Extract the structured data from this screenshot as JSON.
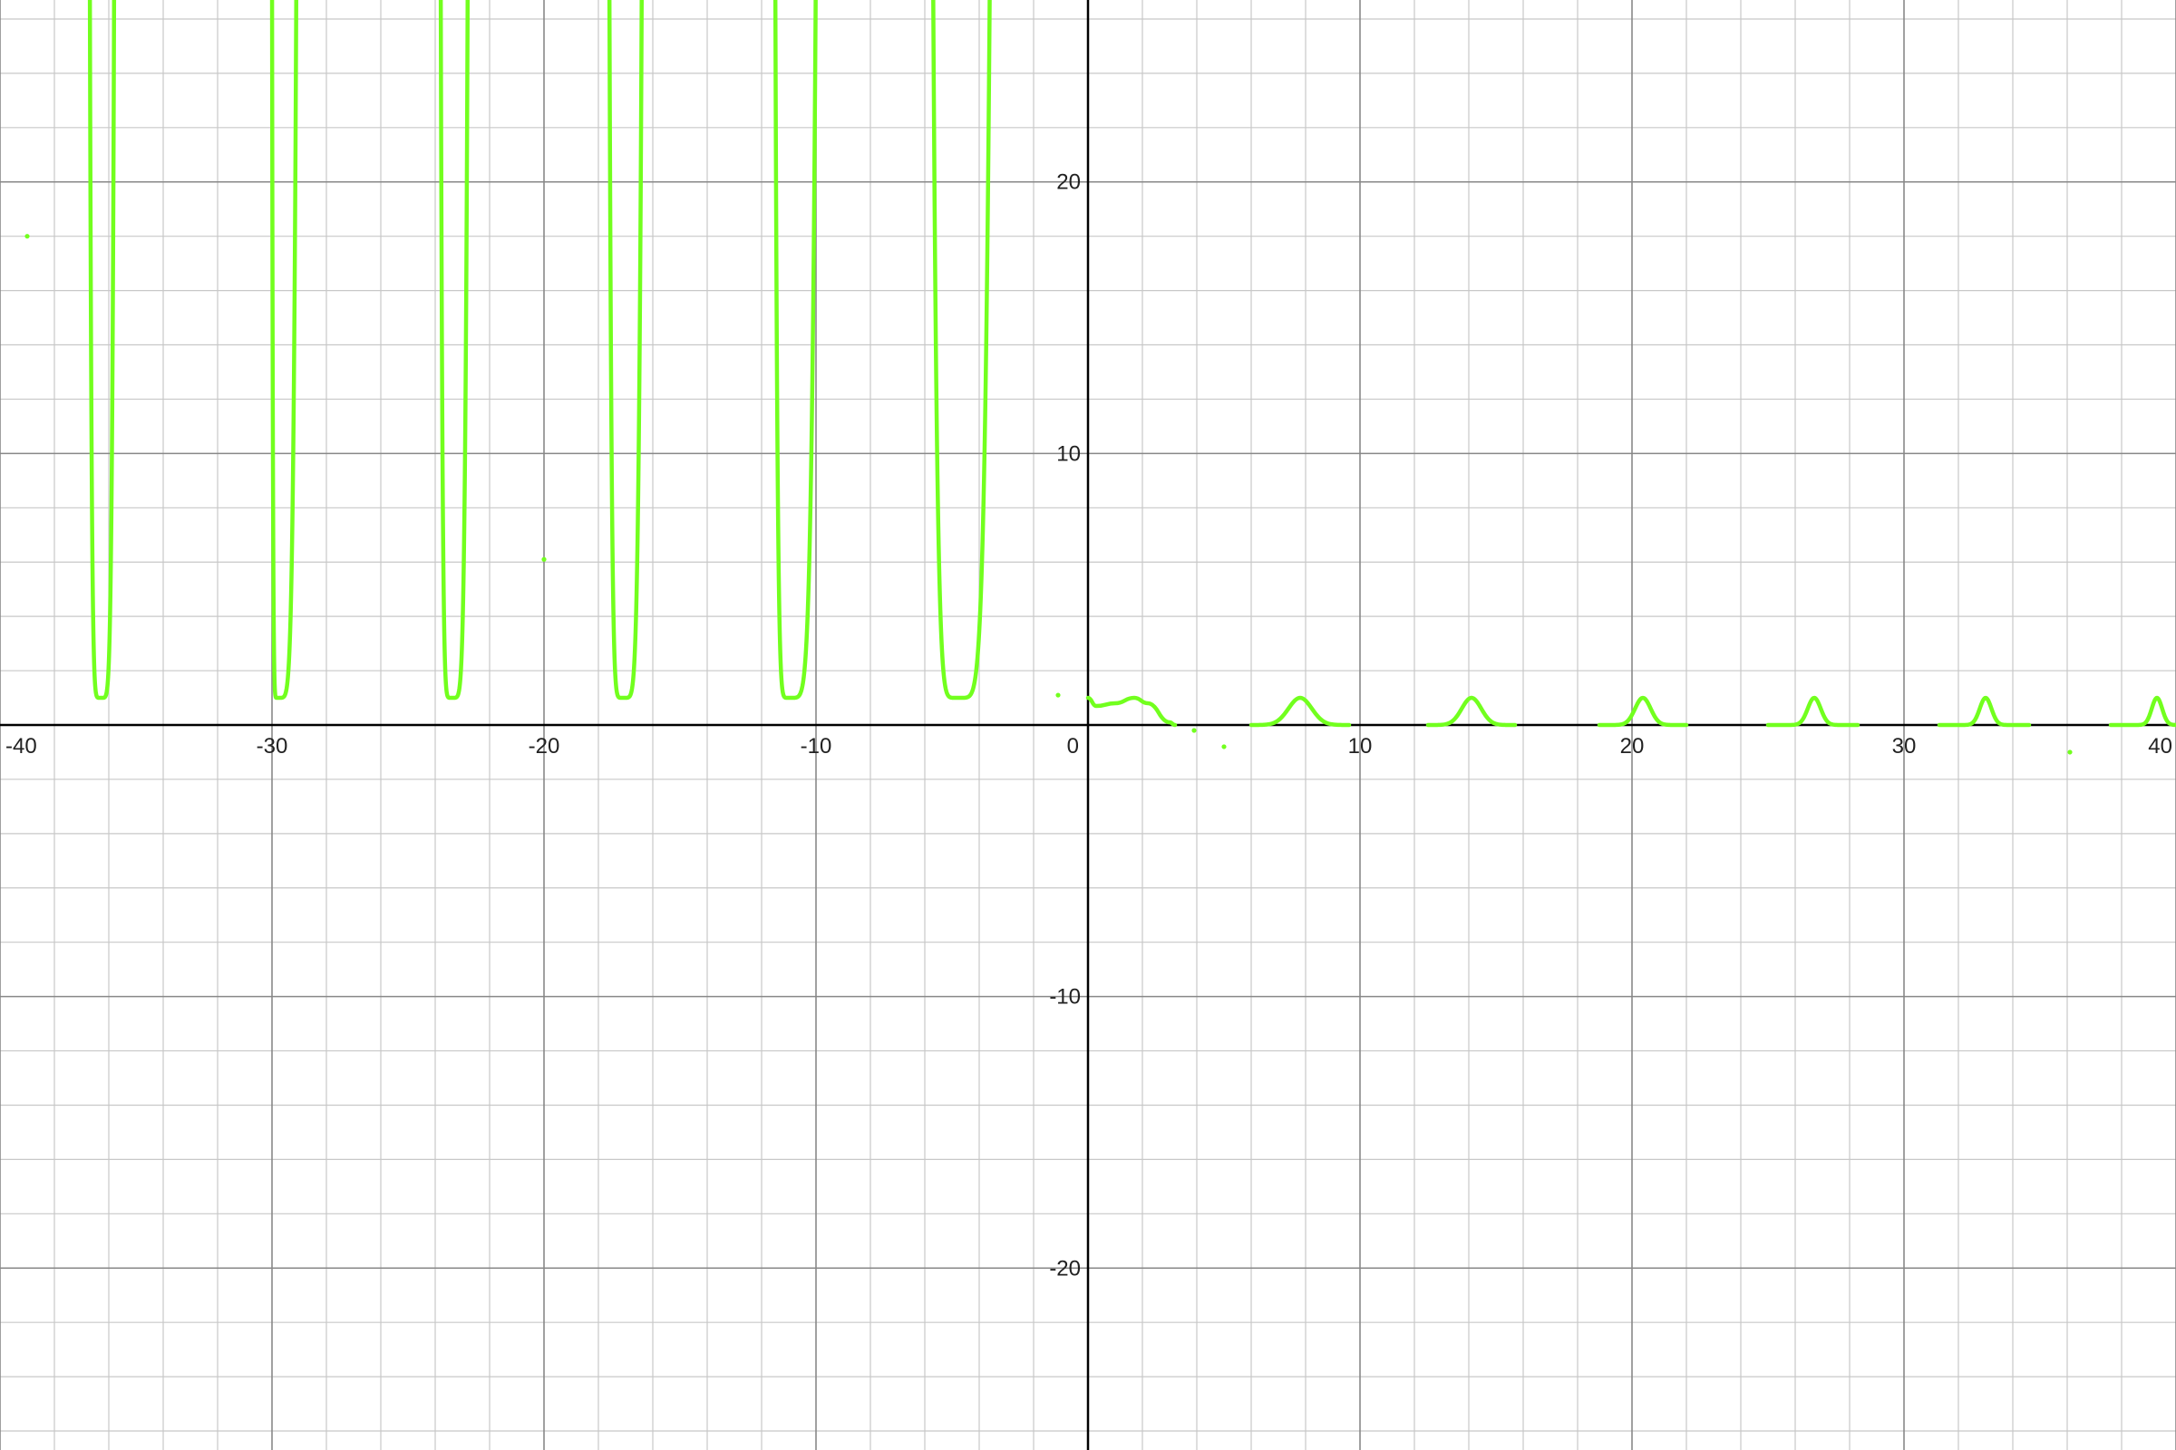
{
  "chart_data": {
    "type": "line",
    "title": "",
    "xlabel": "",
    "ylabel": "",
    "xlim": [
      -40,
      40
    ],
    "ylim": [
      -26.7,
      26.7
    ],
    "grid": true,
    "minor_grid_step": 2,
    "major_grid_step": 10,
    "x_tick_labels": [
      "-40",
      "-30",
      "-20",
      "-10",
      "0",
      "10",
      "20",
      "30",
      "40"
    ],
    "y_tick_labels": [
      "20",
      "10",
      "-10",
      "-20"
    ],
    "colors": {
      "curve": "#72ff1e",
      "axis": "#000000",
      "major_grid": "#888888",
      "minor_grid": "#c8c8c8"
    },
    "series": [
      {
        "shape": "u-wells",
        "wells": [
          {
            "left": -36.7,
            "min_x": -36.3,
            "right": -35.8,
            "min_y": 1.0
          },
          {
            "left": -30.0,
            "min_x": -29.8,
            "right": -29.1,
            "min_y": 1.0
          },
          {
            "left": -23.8,
            "min_x": -23.4,
            "right": -22.8,
            "min_y": 1.0
          },
          {
            "left": -17.6,
            "min_x": -17.1,
            "right": -16.4,
            "min_y": 1.0
          },
          {
            "left": -11.5,
            "min_x": -11.0,
            "right": -10.0,
            "min_y": 1.0
          },
          {
            "left": -5.7,
            "min_x": -4.8,
            "right": -3.6,
            "min_y": 1.0
          }
        ]
      },
      {
        "shape": "bumps",
        "start_segment": [
          [
            0.0,
            1.0
          ],
          [
            0.3,
            0.7
          ],
          [
            1.0,
            0.8
          ],
          [
            1.7,
            1.0
          ],
          [
            2.2,
            0.8
          ],
          [
            3.0,
            0.1
          ],
          [
            3.2,
            0.0
          ]
        ],
        "bumps": [
          {
            "center": 7.8,
            "height": 1.0,
            "half_width": 0.9,
            "flat_from": 6.0,
            "flat_to": 9.6
          },
          {
            "center": 14.1,
            "height": 1.0,
            "half_width": 0.75,
            "flat_from": 12.5,
            "flat_to": 15.7
          },
          {
            "center": 20.4,
            "height": 1.0,
            "half_width": 0.6,
            "flat_from": 18.8,
            "flat_to": 22.0
          },
          {
            "center": 26.7,
            "height": 1.0,
            "half_width": 0.5,
            "flat_from": 25.0,
            "flat_to": 28.3
          },
          {
            "center": 33.0,
            "height": 1.0,
            "half_width": 0.45,
            "flat_from": 31.3,
            "flat_to": 34.6
          },
          {
            "center": 39.3,
            "height": 1.0,
            "half_width": 0.4,
            "flat_from": 37.6,
            "flat_to": 40.0
          }
        ]
      },
      {
        "shape": "points",
        "points": [
          [
            -39.0,
            18.0
          ],
          [
            -20.0,
            6.1
          ],
          [
            -1.1,
            1.1
          ],
          [
            3.9,
            -0.2
          ],
          [
            5.0,
            -0.8
          ],
          [
            36.1,
            -1.0
          ]
        ]
      }
    ]
  }
}
